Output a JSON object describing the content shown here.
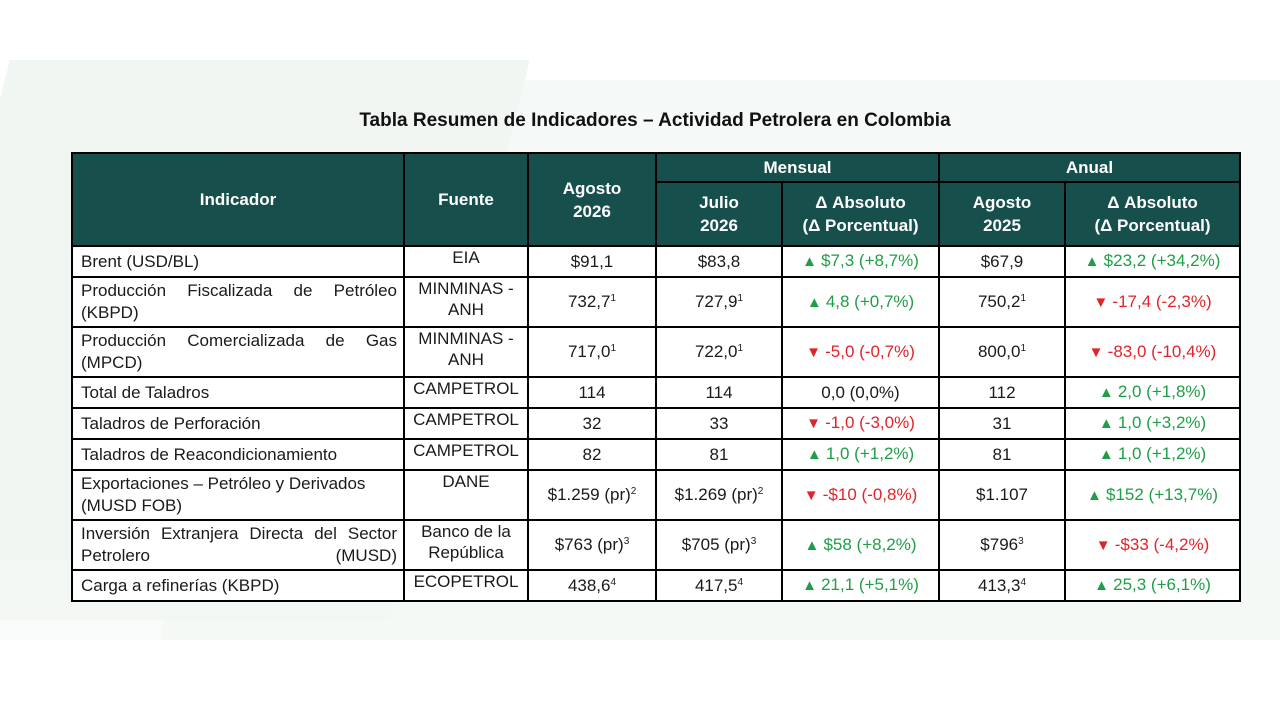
{
  "title": "Tabla Resumen de Indicadores – Actividad Petrolera en Colombia",
  "headers": {
    "indicator": "Indicador",
    "source": "Fuente",
    "current_line1": "Agosto",
    "current_line2": "2026",
    "monthly": "Mensual",
    "annual": "Anual",
    "prev_month_line1": "Julio",
    "prev_month_line2": "2026",
    "abs_line1": "Δ Absoluto",
    "abs_line2": "(Δ Porcentual)",
    "prev_year_line1": "Agosto",
    "prev_year_line2": "2025"
  },
  "colors": {
    "header_bg": "#174f4c",
    "up": "#1f9e47",
    "down": "#e0242a"
  },
  "rows": [
    {
      "indicator": "Brent (USD/BL)",
      "source": "EIA",
      "current": "$91,1",
      "current_sup": "",
      "prev_month": "$83,8",
      "prev_month_sup": "",
      "monthly_delta": "$7,3 (+8,7%)",
      "monthly_dir": "up",
      "prev_year": "$67,9",
      "prev_year_sup": "",
      "annual_delta": "$23,2 (+34,2%)",
      "annual_dir": "up",
      "justify": false
    },
    {
      "indicator": "Producción Fiscalizada de Petróleo (KBPD)",
      "source": "MINMINAS - ANH",
      "current": "732,7",
      "current_sup": "1",
      "prev_month": "727,9",
      "prev_month_sup": "1",
      "monthly_delta": "4,8 (+0,7%)",
      "monthly_dir": "up",
      "prev_year": "750,2",
      "prev_year_sup": "1",
      "annual_delta": "-17,4 (-2,3%)",
      "annual_dir": "down",
      "justify": true
    },
    {
      "indicator": "Producción Comercializada de Gas (MPCD)",
      "source": "MINMINAS - ANH",
      "current": "717,0",
      "current_sup": "1",
      "prev_month": "722,0",
      "prev_month_sup": "1",
      "monthly_delta": "-5,0 (-0,7%)",
      "monthly_dir": "down",
      "prev_year": "800,0",
      "prev_year_sup": "1",
      "annual_delta": "-83,0 (-10,4%)",
      "annual_dir": "down",
      "justify": true
    },
    {
      "indicator": "Total de Taladros",
      "source": "CAMPETROL",
      "current": "114",
      "current_sup": "",
      "prev_month": "114",
      "prev_month_sup": "",
      "monthly_delta": "0,0 (0,0%)",
      "monthly_dir": "neutral",
      "prev_year": "112",
      "prev_year_sup": "",
      "annual_delta": "2,0 (+1,8%)",
      "annual_dir": "up",
      "justify": false
    },
    {
      "indicator": "Taladros de Perforación",
      "source": "CAMPETROL",
      "current": "32",
      "current_sup": "",
      "prev_month": "33",
      "prev_month_sup": "",
      "monthly_delta": "-1,0 (-3,0%)",
      "monthly_dir": "down",
      "prev_year": "31",
      "prev_year_sup": "",
      "annual_delta": "1,0 (+3,2%)",
      "annual_dir": "up",
      "justify": false
    },
    {
      "indicator": "Taladros de Reacondicionamiento",
      "source": "CAMPETROL",
      "current": "82",
      "current_sup": "",
      "prev_month": "81",
      "prev_month_sup": "",
      "monthly_delta": "1,0 (+1,2%)",
      "monthly_dir": "up",
      "prev_year": "81",
      "prev_year_sup": "",
      "annual_delta": "1,0 (+1,2%)",
      "annual_dir": "up",
      "justify": false
    },
    {
      "indicator": "Exportaciones – Petróleo y Derivados (MUSD FOB)",
      "source": "DANE",
      "current": "$1.259 (pr)",
      "current_sup": "2",
      "prev_month": "$1.269 (pr)",
      "prev_month_sup": "2",
      "monthly_delta": "-$10 (-0,8%)",
      "monthly_dir": "down",
      "prev_year": "$1.107",
      "prev_year_sup": "",
      "annual_delta": "$152 (+13,7%)",
      "annual_dir": "up",
      "justify": false
    },
    {
      "indicator": "Inversión Extranjera Directa del Sector Petrolero (MUSD)",
      "source": "Banco de la República",
      "current": "$763 (pr)",
      "current_sup": "3",
      "prev_month": "$705 (pr)",
      "prev_month_sup": "3",
      "monthly_delta": "$58 (+8,2%)",
      "monthly_dir": "up",
      "prev_year": "$796",
      "prev_year_sup": "3",
      "annual_delta": "-$33 (-4,2%)",
      "annual_dir": "down",
      "justify": true
    },
    {
      "indicator": "Carga a refinerías (KBPD)",
      "source": "ECOPETROL",
      "current": "438,6",
      "current_sup": "4",
      "prev_month": "417,5",
      "prev_month_sup": "4",
      "monthly_delta": "21,1 (+5,1%)",
      "monthly_dir": "up",
      "prev_year": "413,3",
      "prev_year_sup": "4",
      "annual_delta": "25,3 (+6,1%)",
      "annual_dir": "up",
      "justify": false
    }
  ]
}
